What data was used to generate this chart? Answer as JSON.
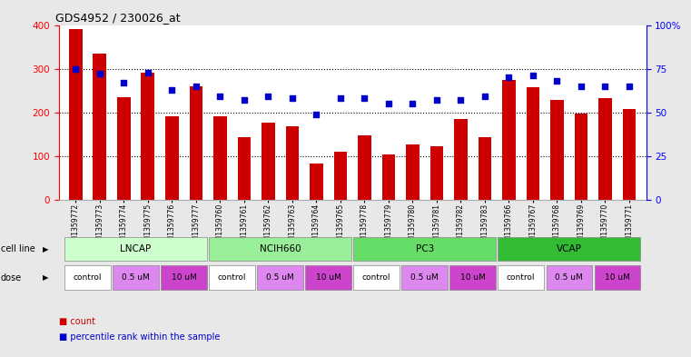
{
  "title": "GDS4952 / 230026_at",
  "samples": [
    "GSM1359772",
    "GSM1359773",
    "GSM1359774",
    "GSM1359775",
    "GSM1359776",
    "GSM1359777",
    "GSM1359760",
    "GSM1359761",
    "GSM1359762",
    "GSM1359763",
    "GSM1359764",
    "GSM1359765",
    "GSM1359778",
    "GSM1359779",
    "GSM1359780",
    "GSM1359781",
    "GSM1359782",
    "GSM1359783",
    "GSM1359766",
    "GSM1359767",
    "GSM1359768",
    "GSM1359769",
    "GSM1359770",
    "GSM1359771"
  ],
  "counts": [
    390,
    335,
    235,
    290,
    192,
    260,
    192,
    143,
    177,
    168,
    83,
    110,
    148,
    105,
    127,
    122,
    185,
    143,
    275,
    258,
    228,
    197,
    233,
    207
  ],
  "percentiles": [
    75,
    72,
    67,
    73,
    63,
    65,
    59,
    57,
    59,
    58,
    49,
    58,
    58,
    55,
    55,
    57,
    57,
    59,
    70,
    71,
    68,
    65,
    65,
    65
  ],
  "cell_lines": [
    {
      "name": "LNCAP",
      "start": 0,
      "end": 6,
      "color": "#ccffcc"
    },
    {
      "name": "NCIH660",
      "start": 6,
      "end": 12,
      "color": "#99ee99"
    },
    {
      "name": "PC3",
      "start": 12,
      "end": 18,
      "color": "#66dd66"
    },
    {
      "name": "VCAP",
      "start": 18,
      "end": 24,
      "color": "#33bb33"
    }
  ],
  "doses": [
    {
      "name": "control",
      "start": 0,
      "end": 2
    },
    {
      "name": "0.5 uM",
      "start": 2,
      "end": 4
    },
    {
      "name": "10 uM",
      "start": 4,
      "end": 6
    },
    {
      "name": "control",
      "start": 6,
      "end": 8
    },
    {
      "name": "0.5 uM",
      "start": 8,
      "end": 10
    },
    {
      "name": "10 uM",
      "start": 10,
      "end": 12
    },
    {
      "name": "control",
      "start": 12,
      "end": 14
    },
    {
      "name": "0.5 uM",
      "start": 14,
      "end": 16
    },
    {
      "name": "10 uM",
      "start": 16,
      "end": 18
    },
    {
      "name": "control",
      "start": 18,
      "end": 20
    },
    {
      "name": "0.5 uM",
      "start": 20,
      "end": 22
    },
    {
      "name": "10 uM",
      "start": 22,
      "end": 24
    }
  ],
  "dose_colors": {
    "control": "#ffffff",
    "0.5 uM": "#dd88ee",
    "10 uM": "#cc44cc"
  },
  "bar_color": "#cc0000",
  "dot_color": "#0000cc",
  "ylim_left": [
    0,
    400
  ],
  "ylim_right": [
    0,
    100
  ],
  "yticks_left": [
    0,
    100,
    200,
    300,
    400
  ],
  "yticks_right": [
    0,
    25,
    50,
    75,
    100
  ],
  "yticklabels_right": [
    "0",
    "25",
    "50",
    "75",
    "100%"
  ],
  "background_color": "#e8e8e8",
  "plot_bg": "#ffffff"
}
